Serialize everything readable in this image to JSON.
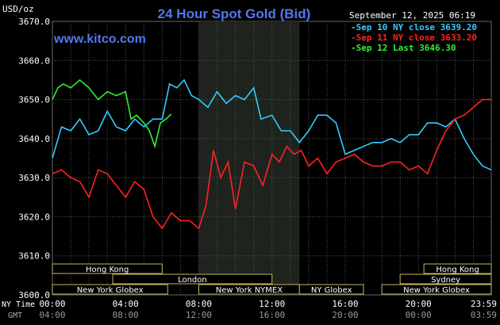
{
  "header": {
    "title": "24 Hour Spot Gold (Bid)",
    "unit": "USD/oz",
    "timestamp": "September 12, 2025 06:19",
    "website": "www.kitco.com"
  },
  "legend": [
    {
      "text": "Sep 10 NY close 3639.20",
      "color": "#33ccff"
    },
    {
      "text": "Sep 11 NY close 3633.20",
      "color": "#ff2222"
    },
    {
      "text": "Sep 12 Last 3646.30",
      "color": "#33ee33"
    }
  ],
  "axis_labels": {
    "ny_time": "NY Time",
    "gmt": "GMT"
  },
  "chart_data": {
    "type": "line",
    "ylim": [
      3600.0,
      3670.0
    ],
    "yticks": [
      "3670.0",
      "3660.0",
      "3650.0",
      "3640.0",
      "3630.0",
      "3620.0",
      "3610.0",
      "3600.0"
    ],
    "xticks_ny": [
      "00:00",
      "04:00",
      "08:00",
      "12:00",
      "16:00",
      "20:00",
      "23:59"
    ],
    "xticks_gmt": [
      "04:00",
      "08:00",
      "12:00",
      "16:00",
      "20:00",
      "00:00",
      "03:59"
    ],
    "grid": true,
    "shaded_period": [
      8.0,
      13.5
    ],
    "series": [
      {
        "name": "Sep 10",
        "color": "#33ccff",
        "points": [
          [
            0,
            3635
          ],
          [
            0.5,
            3643
          ],
          [
            1.0,
            3642
          ],
          [
            1.5,
            3645
          ],
          [
            2.0,
            3641
          ],
          [
            2.5,
            3642
          ],
          [
            3.0,
            3647
          ],
          [
            3.5,
            3643
          ],
          [
            4.0,
            3642
          ],
          [
            4.5,
            3645
          ],
          [
            5.0,
            3643
          ],
          [
            5.5,
            3645
          ],
          [
            6.0,
            3645
          ],
          [
            6.4,
            3654
          ],
          [
            6.8,
            3653
          ],
          [
            7.2,
            3655
          ],
          [
            7.6,
            3651
          ],
          [
            8.0,
            3650
          ],
          [
            8.5,
            3648
          ],
          [
            9.0,
            3652
          ],
          [
            9.5,
            3649
          ],
          [
            10.0,
            3651
          ],
          [
            10.5,
            3650
          ],
          [
            11.0,
            3653
          ],
          [
            11.4,
            3645
          ],
          [
            12.0,
            3646
          ],
          [
            12.5,
            3642
          ],
          [
            13.0,
            3642
          ],
          [
            13.5,
            3639
          ],
          [
            14.0,
            3642
          ],
          [
            14.5,
            3646
          ],
          [
            15.0,
            3646
          ],
          [
            15.5,
            3644
          ],
          [
            16.0,
            3636
          ],
          [
            16.5,
            3637
          ],
          [
            17.0,
            3638
          ],
          [
            17.5,
            3639
          ],
          [
            18.0,
            3639
          ],
          [
            18.5,
            3640
          ],
          [
            19.0,
            3639
          ],
          [
            19.5,
            3641
          ],
          [
            20.0,
            3641
          ],
          [
            20.5,
            3644
          ],
          [
            21.0,
            3644
          ],
          [
            21.5,
            3643
          ],
          [
            22.0,
            3645
          ],
          [
            22.5,
            3640
          ],
          [
            23.0,
            3636
          ],
          [
            23.5,
            3633
          ],
          [
            23.98,
            3632
          ]
        ]
      },
      {
        "name": "Sep 11",
        "color": "#ff2222",
        "points": [
          [
            0,
            3631
          ],
          [
            0.5,
            3632
          ],
          [
            1.0,
            3630
          ],
          [
            1.5,
            3629
          ],
          [
            2.0,
            3625
          ],
          [
            2.5,
            3632
          ],
          [
            3.0,
            3631
          ],
          [
            3.5,
            3628
          ],
          [
            4.0,
            3625
          ],
          [
            4.5,
            3629
          ],
          [
            5.0,
            3627
          ],
          [
            5.5,
            3620
          ],
          [
            6.0,
            3617
          ],
          [
            6.5,
            3621
          ],
          [
            7.0,
            3619
          ],
          [
            7.5,
            3619
          ],
          [
            8.0,
            3617
          ],
          [
            8.4,
            3623
          ],
          [
            8.8,
            3637
          ],
          [
            9.2,
            3630
          ],
          [
            9.6,
            3634
          ],
          [
            10.0,
            3622
          ],
          [
            10.5,
            3634
          ],
          [
            11.0,
            3633
          ],
          [
            11.5,
            3628
          ],
          [
            12.0,
            3636
          ],
          [
            12.4,
            3634
          ],
          [
            12.8,
            3638
          ],
          [
            13.2,
            3636
          ],
          [
            13.6,
            3637
          ],
          [
            14.0,
            3633
          ],
          [
            14.5,
            3635
          ],
          [
            15.0,
            3631
          ],
          [
            15.5,
            3634
          ],
          [
            16.0,
            3635
          ],
          [
            16.5,
            3636
          ],
          [
            17.0,
            3634
          ],
          [
            17.5,
            3633
          ],
          [
            18.0,
            3633
          ],
          [
            18.5,
            3634
          ],
          [
            19.0,
            3634
          ],
          [
            19.5,
            3632
          ],
          [
            20.0,
            3633
          ],
          [
            20.5,
            3631
          ],
          [
            21.0,
            3637
          ],
          [
            21.5,
            3642
          ],
          [
            22.0,
            3645
          ],
          [
            22.5,
            3646
          ],
          [
            23.0,
            3648
          ],
          [
            23.5,
            3650
          ],
          [
            23.98,
            3650
          ]
        ]
      },
      {
        "name": "Sep 12",
        "color": "#33ee33",
        "points": [
          [
            0,
            3650
          ],
          [
            0.3,
            3653
          ],
          [
            0.6,
            3654
          ],
          [
            1.0,
            3653
          ],
          [
            1.5,
            3655
          ],
          [
            2.0,
            3653
          ],
          [
            2.5,
            3650
          ],
          [
            3.0,
            3652
          ],
          [
            3.5,
            3651
          ],
          [
            4.0,
            3652
          ],
          [
            4.3,
            3645
          ],
          [
            4.6,
            3646
          ],
          [
            5.0,
            3644
          ],
          [
            5.3,
            3642
          ],
          [
            5.6,
            3638
          ],
          [
            5.9,
            3644
          ],
          [
            6.2,
            3645
          ],
          [
            6.5,
            3646.3
          ]
        ]
      }
    ],
    "sessions": [
      {
        "label": "Hong Kong",
        "start": 0.0,
        "end": 6.0,
        "row": 0
      },
      {
        "label": "London",
        "start": 3.3,
        "end": 12.0,
        "row": 1
      },
      {
        "label": "New York Globex",
        "start": 0.0,
        "end": 6.3,
        "row": 2
      },
      {
        "label": "New York NYMEX",
        "start": 8.0,
        "end": 13.5,
        "row": 2
      },
      {
        "label": "NY Globex",
        "start": 13.5,
        "end": 17.0,
        "row": 2
      },
      {
        "label": "Hong Kong",
        "start": 20.3,
        "end": 23.98,
        "row": 0
      },
      {
        "label": "Sydney",
        "start": 19.0,
        "end": 23.98,
        "row": 1
      },
      {
        "label": "New York Globex",
        "start": 18.0,
        "end": 23.98,
        "row": 2
      }
    ]
  }
}
